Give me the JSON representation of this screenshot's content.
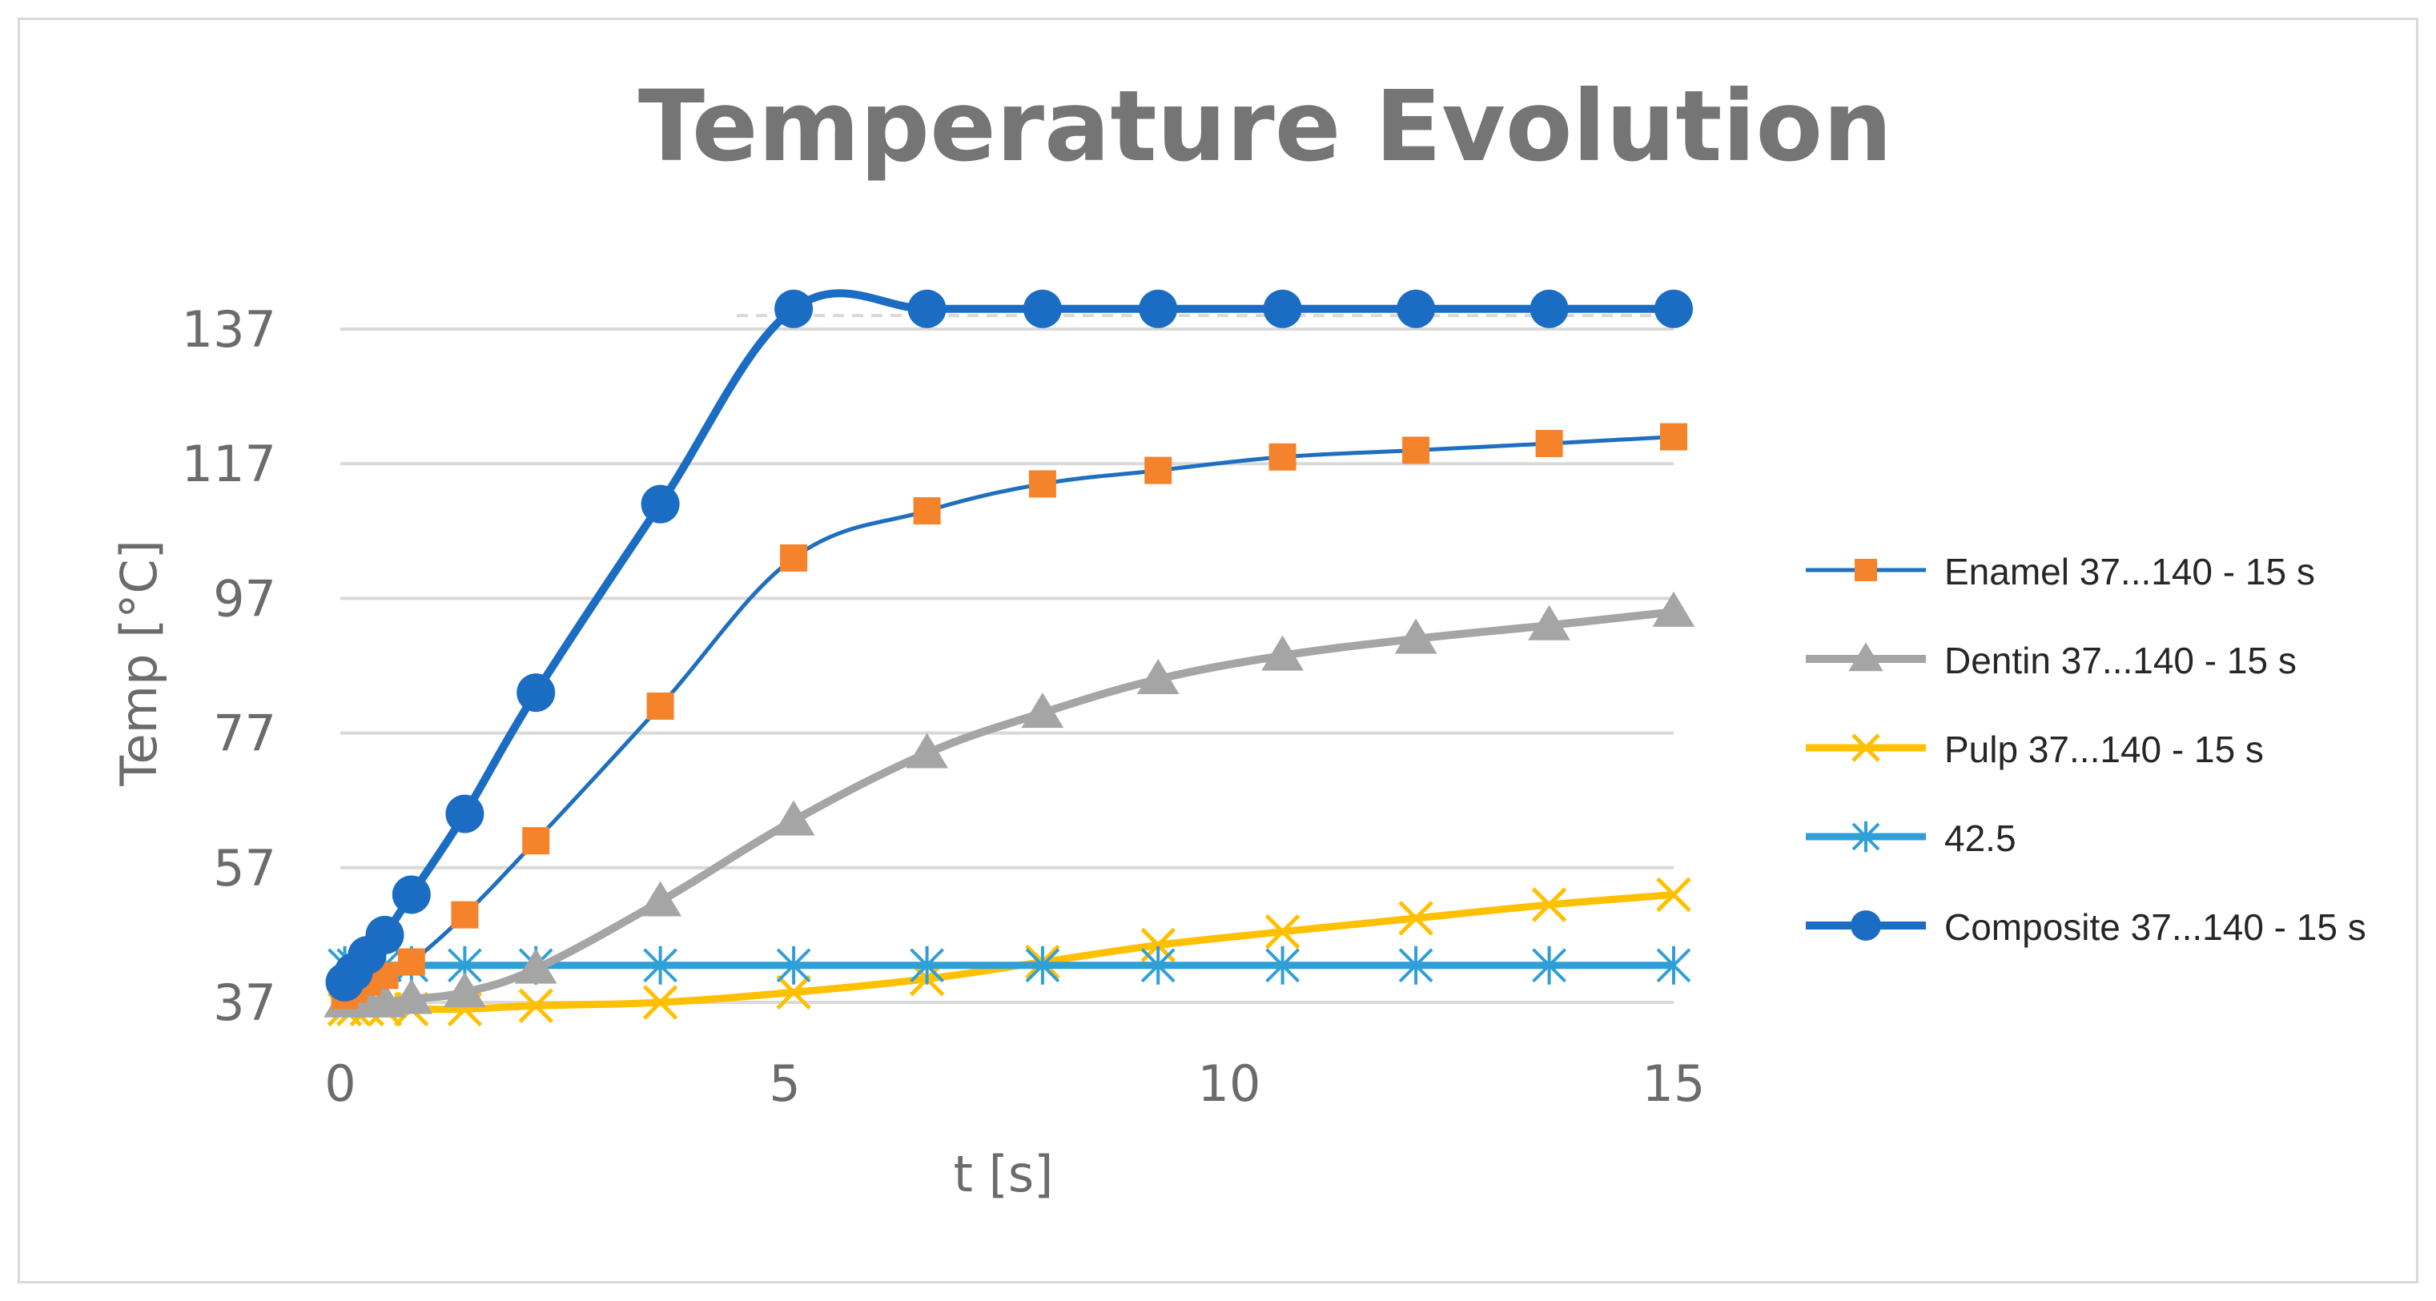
{
  "chart_data": {
    "type": "scatter",
    "title": "Temperature Evolution",
    "xlabel": "t [s]",
    "ylabel": "Temp [°C]",
    "xlim": [
      0,
      15
    ],
    "ylim": [
      37,
      137
    ],
    "x_ticks": [
      "0",
      "5",
      "10",
      "15"
    ],
    "y_ticks": [
      "37",
      "57",
      "77",
      "97",
      "117",
      "137"
    ],
    "grid": "horizontal",
    "legend_position": "right",
    "reference_line": {
      "label": "",
      "y": 139
    },
    "series": [
      {
        "name": "Enamel 37...140 - 15 s",
        "color": "#1f6fbf",
        "marker_color": "#f4832c",
        "marker": "square",
        "x": [
          0.05,
          0.15,
          0.3,
          0.5,
          0.8,
          1.4,
          2.2,
          3.6,
          5.1,
          6.6,
          7.9,
          9.2,
          10.6,
          12.1,
          13.6,
          15.0
        ],
        "y": [
          38,
          39,
          40,
          41,
          43,
          50,
          61,
          81,
          103,
          110,
          114,
          116,
          118,
          119,
          120,
          121
        ]
      },
      {
        "name": "Dentin  37...140 - 15 s",
        "color": "#a5a5a5",
        "marker_color": "#a5a5a5",
        "marker": "triangle",
        "x": [
          0.05,
          0.15,
          0.3,
          0.5,
          0.8,
          1.4,
          2.2,
          3.6,
          5.1,
          6.6,
          7.9,
          9.2,
          10.6,
          12.1,
          13.6,
          15.0
        ],
        "y": [
          37,
          37,
          37,
          37,
          37.5,
          38.5,
          42,
          52,
          64,
          74,
          80,
          85,
          88.5,
          91,
          93,
          95
        ]
      },
      {
        "name": "Pulp 37...140 - 15 s",
        "color": "#ffc000",
        "marker_color": "#ffc000",
        "marker": "x",
        "x": [
          0.05,
          0.15,
          0.3,
          0.5,
          0.8,
          1.4,
          2.2,
          3.6,
          5.1,
          6.6,
          7.9,
          9.2,
          10.6,
          12.1,
          13.6,
          15.0
        ],
        "y": [
          36,
          36,
          36,
          36,
          36,
          36,
          36.5,
          37,
          38.5,
          40.5,
          43,
          45.5,
          47.5,
          49.5,
          51.5,
          53
        ]
      },
      {
        "name": "42.5",
        "color": "#2f9fd8",
        "marker_color": "#2f9fd8",
        "marker": "asterisk",
        "x": [
          0.05,
          0.15,
          0.3,
          0.5,
          0.8,
          1.4,
          2.2,
          3.6,
          5.1,
          6.6,
          7.9,
          9.2,
          10.6,
          12.1,
          13.6,
          15.0
        ],
        "y": [
          42.5,
          42.5,
          42.5,
          42.5,
          42.5,
          42.5,
          42.5,
          42.5,
          42.5,
          42.5,
          42.5,
          42.5,
          42.5,
          42.5,
          42.5,
          42.5
        ]
      },
      {
        "name": "Composite 37...140 - 15 s",
        "color": "#1a6dc2",
        "marker_color": "#1a6dc2",
        "marker": "circle",
        "x": [
          0.05,
          0.15,
          0.3,
          0.5,
          0.8,
          1.4,
          2.2,
          3.6,
          5.1,
          6.6,
          7.9,
          9.2,
          10.6,
          12.1,
          13.6,
          15.0
        ],
        "y": [
          40,
          41.5,
          44,
          47,
          53,
          65,
          83,
          111,
          140,
          140,
          140,
          140,
          140,
          140,
          140,
          140
        ]
      }
    ]
  }
}
